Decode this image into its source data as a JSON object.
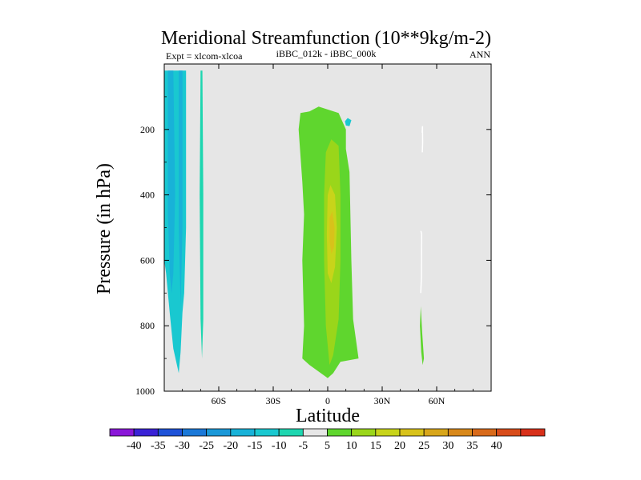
{
  "chart_data": {
    "type": "contour",
    "title": "Meridional Streamfunction (10**9kg/m-2)",
    "left_label": "Expt = xlcom-xlcoa",
    "center_label": "iBBC_012k - iBBC_000k",
    "right_label": "ANN",
    "xlabel": "Latitude",
    "ylabel": "Pressure (in hPa)",
    "xlim": [
      -90,
      90
    ],
    "ylim": [
      1000,
      0
    ],
    "x_ticks": [
      {
        "value": -60,
        "label": "60S"
      },
      {
        "value": -30,
        "label": "30S"
      },
      {
        "value": 0,
        "label": "0"
      },
      {
        "value": 30,
        "label": "30N"
      },
      {
        "value": 60,
        "label": "60N"
      }
    ],
    "y_ticks": [
      {
        "value": 200,
        "label": "200"
      },
      {
        "value": 400,
        "label": "400"
      },
      {
        "value": 600,
        "label": "600"
      },
      {
        "value": 800,
        "label": "800"
      },
      {
        "value": 1000,
        "label": "1000"
      }
    ],
    "background_color": "#e6e6e6",
    "colorbar": {
      "colors": [
        "#8a16d8",
        "#3a22d6",
        "#1e52d8",
        "#1a78d8",
        "#1a98d8",
        "#18b2d8",
        "#19c8d0",
        "#1ed6b0",
        "#e6e6e6",
        "#5fd62e",
        "#9ad61a",
        "#c8d41a",
        "#d8c21a",
        "#d8a61a",
        "#d8881a",
        "#d86a1a",
        "#d84c1a",
        "#d8301a"
      ],
      "labels": [
        "-40",
        "-35",
        "-30",
        "-25",
        "-20",
        "-15",
        "-10",
        "-5",
        "5",
        "10",
        "15",
        "20",
        "25",
        "30",
        "35",
        "40"
      ]
    },
    "regions": [
      {
        "name": "sh-neg-10",
        "level": -10,
        "color": "#19c8d0",
        "points": [
          [
            -90,
            20
          ],
          [
            -78,
            20
          ],
          [
            -78,
            500
          ],
          [
            -79,
            700
          ],
          [
            -80,
            760
          ],
          [
            -81,
            880
          ],
          [
            -82,
            945
          ],
          [
            -85,
            870
          ],
          [
            -87,
            760
          ],
          [
            -89,
            640
          ],
          [
            -90,
            600
          ]
        ]
      },
      {
        "name": "sh-neg-15",
        "level": -15,
        "color": "#18b2d8",
        "points": [
          [
            -88,
            20
          ],
          [
            -85,
            20
          ],
          [
            -84,
            400
          ],
          [
            -85,
            640
          ],
          [
            -86,
            700
          ],
          [
            -87,
            640
          ],
          [
            -88,
            450
          ]
        ]
      },
      {
        "name": "sh-neg-15-b",
        "level": -15,
        "color": "#18b2d8",
        "points": [
          [
            -82,
            20
          ],
          [
            -80,
            20
          ],
          [
            -80,
            500
          ],
          [
            -81,
            740
          ],
          [
            -82,
            500
          ]
        ]
      },
      {
        "name": "sh-neg-5-strip",
        "level": -5,
        "color": "#1ed6b0",
        "points": [
          [
            -70,
            20
          ],
          [
            -69,
            20
          ],
          [
            -68.5,
            400
          ],
          [
            -68.5,
            780
          ],
          [
            -69.2,
            900
          ],
          [
            -70,
            780
          ],
          [
            -70.5,
            400
          ]
        ]
      },
      {
        "name": "tropics-pos-5",
        "level": 5,
        "color": "#5fd62e",
        "points": [
          [
            -15,
            150
          ],
          [
            -10,
            145
          ],
          [
            -5,
            130
          ],
          [
            6,
            150
          ],
          [
            10,
            200
          ],
          [
            10,
            260
          ],
          [
            12,
            330
          ],
          [
            13,
            600
          ],
          [
            14,
            780
          ],
          [
            17,
            900
          ],
          [
            7,
            910
          ],
          [
            3,
            945
          ],
          [
            0,
            960
          ],
          [
            -10,
            920
          ],
          [
            -14,
            900
          ],
          [
            -13,
            800
          ],
          [
            -14,
            600
          ],
          [
            -13,
            460
          ],
          [
            -14,
            360
          ],
          [
            -16,
            200
          ]
        ]
      },
      {
        "name": "tropics-pos-10",
        "level": 10,
        "color": "#9ad61a",
        "points": [
          [
            -1,
            270
          ],
          [
            2,
            230
          ],
          [
            6,
            250
          ],
          [
            7,
            400
          ],
          [
            7,
            600
          ],
          [
            6,
            780
          ],
          [
            3,
            890
          ],
          [
            1,
            920
          ],
          [
            -1,
            800
          ],
          [
            -2,
            600
          ],
          [
            -2,
            400
          ]
        ]
      },
      {
        "name": "tropics-pos-15",
        "level": 15,
        "color": "#c8d41a",
        "points": [
          [
            0,
            400
          ],
          [
            1.5,
            370
          ],
          [
            4,
            400
          ],
          [
            5,
            500
          ],
          [
            4,
            620
          ],
          [
            2,
            670
          ],
          [
            0,
            640
          ],
          [
            -0.5,
            520
          ]
        ]
      },
      {
        "name": "tropics-pos-20",
        "level": 20,
        "color": "#d8c21a",
        "points": [
          [
            1,
            470
          ],
          [
            2.5,
            450
          ],
          [
            3.8,
            500
          ],
          [
            3.5,
            560
          ],
          [
            2,
            580
          ],
          [
            1,
            540
          ]
        ]
      },
      {
        "name": "high-pos-5",
        "level": 5,
        "color": "#5fd62e",
        "points": [
          [
            50.8,
            800
          ],
          [
            51.2,
            740
          ],
          [
            52,
            820
          ],
          [
            53,
            900
          ],
          [
            52.3,
            920
          ],
          [
            51.5,
            880
          ]
        ]
      },
      {
        "name": "cyan-blob",
        "level": -10,
        "color": "#19c8d0",
        "points": [
          [
            9.5,
            175
          ],
          [
            11,
            165
          ],
          [
            13,
            172
          ],
          [
            12,
            190
          ],
          [
            10,
            188
          ]
        ]
      }
    ],
    "contour_lines": [
      {
        "color": "#ffffff",
        "points": [
          [
            52,
            210
          ],
          [
            52.2,
            190
          ],
          [
            52.3,
            240
          ],
          [
            52.1,
            270
          ]
        ]
      },
      {
        "color": "#ffffff",
        "points": [
          [
            51.3,
            510
          ],
          [
            51.7,
            520
          ],
          [
            51.6,
            650
          ],
          [
            51.2,
            700
          ]
        ]
      }
    ]
  }
}
